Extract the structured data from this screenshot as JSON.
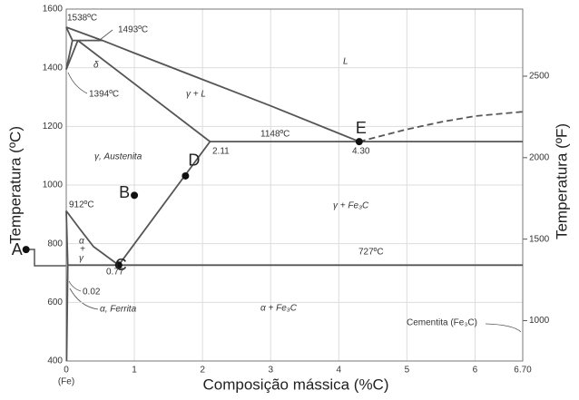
{
  "chart_data": {
    "type": "phase-diagram",
    "xlabel": "Composição mássica (%C)",
    "ylabel": "Temperatura (ºC)",
    "y2label": "Temperatura (ºF)",
    "x_note": "(Fe)",
    "xlim": [
      0,
      6.7
    ],
    "ylim": [
      400,
      1600
    ],
    "y2lim": [
      752,
      2912
    ],
    "xticks": [
      0,
      1,
      2,
      3,
      4,
      5,
      6,
      {
        "value": 6.7,
        "label": "6.70"
      }
    ],
    "yticks": [
      400,
      600,
      800,
      1000,
      1200,
      1400,
      1600
    ],
    "y2ticks": [
      1000,
      1500,
      2000,
      2500
    ],
    "grid": true,
    "color": "#555555",
    "boundaries": [
      {
        "style": "solid",
        "x": [
          0,
          0.53,
          1,
          2,
          3,
          4.3
        ],
        "y": [
          1538,
          1493,
          1450,
          1360,
          1270,
          1148
        ]
      },
      {
        "style": "dashed",
        "x": [
          4.3,
          5,
          5.5,
          6,
          6.7
        ],
        "y": [
          1148,
          1190,
          1215,
          1235,
          1250
        ]
      },
      {
        "style": "solid",
        "x": [
          0.17,
          2.11
        ],
        "y": [
          1493,
          1148
        ]
      },
      {
        "style": "solid",
        "x": [
          2.11,
          6.7
        ],
        "y": [
          1148,
          1148
        ]
      },
      {
        "style": "solid",
        "x": [
          0.022,
          6.7
        ],
        "y": [
          727,
          727
        ]
      },
      {
        "style": "solid",
        "x": [
          0,
          0.2,
          0.4,
          0.77
        ],
        "y": [
          912,
          850,
          790,
          727
        ]
      },
      {
        "style": "solid",
        "x": [
          0.77,
          2.11
        ],
        "y": [
          727,
          1148
        ]
      },
      {
        "style": "solid",
        "x": [
          0,
          0.09,
          0
        ],
        "y": [
          1538,
          1493,
          1394
        ]
      },
      {
        "style": "solid",
        "x": [
          0,
          0.17
        ],
        "y": [
          1394,
          1493
        ]
      },
      {
        "style": "solid",
        "x": [
          0.09,
          0.53
        ],
        "y": [
          1493,
          1493
        ]
      },
      {
        "style": "solid",
        "x": [
          0,
          0.022,
          0.005
        ],
        "y": [
          912,
          727,
          400
        ]
      }
    ],
    "points": {
      "names": [
        "A",
        "B",
        "C",
        "D",
        "E"
      ],
      "x": [
        -0.59,
        1.0,
        0.77,
        1.75,
        4.3
      ],
      "y": [
        780,
        965,
        727,
        1031,
        1148
      ]
    },
    "annotations": [
      "1538ºC",
      "1493ºC",
      "1394ºC",
      "δ",
      "L",
      "γ + L",
      "1148ºC",
      "2.11",
      "4.30",
      "γ, Austenita",
      "912ºC",
      "γ + Fe₃C",
      "α",
      "+",
      "γ",
      "727ºC",
      "0.77",
      "0.02",
      "α, Ferrita",
      "α + Fe₃C",
      "Cementita (Fe₃C)"
    ]
  }
}
